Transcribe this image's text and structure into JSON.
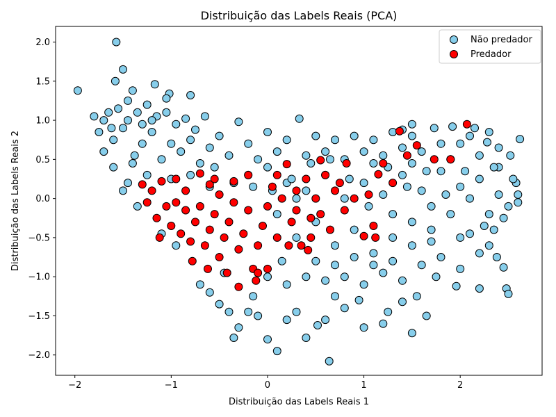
{
  "chart_data": {
    "type": "scatter",
    "title": "Distribuição das Labels Reais (PCA)",
    "xlabel": "Distribuição das Labels Reais  1",
    "ylabel": "Distribuição das Labels Reais  2",
    "xlim": [
      -2.2,
      2.85
    ],
    "ylim": [
      -2.26,
      2.2
    ],
    "xticks": [
      -2,
      -1,
      0,
      1,
      2
    ],
    "xtick_labels": [
      "−2",
      "−1",
      "0",
      "1",
      "2"
    ],
    "yticks": [
      -2.0,
      -1.5,
      -1.0,
      -0.5,
      0.0,
      0.5,
      1.0,
      1.5,
      2.0
    ],
    "ytick_labels": [
      "−2.0",
      "−1.5",
      "−1.0",
      "−0.5",
      "0.0",
      "0.5",
      "1.0",
      "1.5",
      "2.0"
    ],
    "grid": false,
    "legend_position": "top-right",
    "marker_edge_color": "#000000",
    "series": [
      {
        "name": "Não predador",
        "color": "#87ceeb",
        "points": [
          [
            -1.97,
            1.38
          ],
          [
            -1.57,
            2.0
          ],
          [
            -1.5,
            1.65
          ],
          [
            -1.58,
            1.5
          ],
          [
            -1.4,
            1.38
          ],
          [
            -1.17,
            1.46
          ],
          [
            -1.02,
            1.34
          ],
          [
            -1.05,
            1.28
          ],
          [
            -0.8,
            1.32
          ],
          [
            -1.8,
            1.05
          ],
          [
            -1.7,
            1.0
          ],
          [
            -1.62,
            0.9
          ],
          [
            -1.55,
            1.15
          ],
          [
            -1.45,
            1.25
          ],
          [
            -1.35,
            1.1
          ],
          [
            -1.25,
            1.2
          ],
          [
            -1.15,
            1.05
          ],
          [
            -1.05,
            1.1
          ],
          [
            -0.95,
            0.95
          ],
          [
            -0.85,
            1.02
          ],
          [
            -0.75,
            0.88
          ],
          [
            -0.65,
            1.05
          ],
          [
            -1.6,
            0.4
          ],
          [
            -1.45,
            0.2
          ],
          [
            -1.38,
            0.55
          ],
          [
            -1.3,
            0.7
          ],
          [
            -1.2,
            0.85
          ],
          [
            -1.1,
            0.5
          ],
          [
            -1.0,
            0.7
          ],
          [
            -0.9,
            0.6
          ],
          [
            -0.8,
            0.75
          ],
          [
            -0.7,
            0.45
          ],
          [
            -0.6,
            0.65
          ],
          [
            -0.5,
            0.8
          ],
          [
            -0.4,
            0.55
          ],
          [
            -0.3,
            0.98
          ],
          [
            -0.2,
            0.7
          ],
          [
            -0.1,
            0.5
          ],
          [
            0.0,
            0.85
          ],
          [
            0.1,
            0.6
          ],
          [
            0.2,
            0.75
          ],
          [
            0.33,
            1.02
          ],
          [
            0.4,
            0.55
          ],
          [
            0.5,
            0.8
          ],
          [
            0.6,
            0.6
          ],
          [
            0.7,
            0.75
          ],
          [
            0.8,
            0.5
          ],
          [
            0.9,
            0.8
          ],
          [
            1.0,
            0.6
          ],
          [
            1.1,
            0.75
          ],
          [
            1.2,
            0.55
          ],
          [
            1.3,
            0.85
          ],
          [
            1.4,
            0.65
          ],
          [
            1.5,
            0.8
          ],
          [
            1.6,
            0.6
          ],
          [
            1.73,
            0.9
          ],
          [
            1.8,
            0.7
          ],
          [
            1.92,
            0.92
          ],
          [
            2.0,
            0.7
          ],
          [
            2.1,
            0.8
          ],
          [
            2.2,
            0.55
          ],
          [
            2.28,
            0.72
          ],
          [
            2.4,
            0.4
          ],
          [
            2.52,
            0.55
          ],
          [
            2.62,
            0.76
          ],
          [
            2.58,
            0.2
          ],
          [
            2.6,
            -0.05
          ],
          [
            2.5,
            -0.1
          ],
          [
            2.45,
            -0.25
          ],
          [
            2.35,
            -0.4
          ],
          [
            2.3,
            -0.6
          ],
          [
            2.38,
            -0.75
          ],
          [
            2.45,
            -0.88
          ],
          [
            2.48,
            -1.15
          ],
          [
            2.5,
            -1.22
          ],
          [
            2.2,
            -1.15
          ],
          [
            1.96,
            -1.12
          ],
          [
            1.75,
            -1.0
          ],
          [
            1.65,
            -1.5
          ],
          [
            1.5,
            -1.72
          ],
          [
            1.55,
            -1.25
          ],
          [
            1.4,
            -1.32
          ],
          [
            1.25,
            -1.45
          ],
          [
            1.2,
            -1.6
          ],
          [
            1.0,
            -1.65
          ],
          [
            0.95,
            -1.3
          ],
          [
            0.8,
            -1.4
          ],
          [
            0.7,
            -1.25
          ],
          [
            0.6,
            -1.55
          ],
          [
            0.52,
            -1.62
          ],
          [
            0.64,
            -2.08
          ],
          [
            0.4,
            -1.78
          ],
          [
            0.3,
            -1.45
          ],
          [
            0.2,
            -1.55
          ],
          [
            0.1,
            -1.95
          ],
          [
            0.0,
            -1.8
          ],
          [
            -0.1,
            -1.5
          ],
          [
            -0.2,
            -1.45
          ],
          [
            -0.3,
            -1.65
          ],
          [
            -0.35,
            -1.78
          ],
          [
            -0.4,
            -1.45
          ],
          [
            -0.5,
            -1.35
          ],
          [
            -0.6,
            -1.2
          ],
          [
            -0.7,
            -1.1
          ],
          [
            -0.45,
            -0.95
          ],
          [
            0.2,
            -1.1
          ],
          [
            0.4,
            -1.0
          ],
          [
            0.6,
            -1.05
          ],
          [
            0.8,
            -1.0
          ],
          [
            1.0,
            -1.1
          ],
          [
            1.2,
            -0.95
          ],
          [
            1.4,
            -1.05
          ],
          [
            1.6,
            -0.85
          ],
          [
            1.8,
            -0.75
          ],
          [
            2.0,
            -0.9
          ],
          [
            2.2,
            -0.7
          ],
          [
            0.3,
            -0.5
          ],
          [
            0.5,
            -0.3
          ],
          [
            0.7,
            -0.6
          ],
          [
            0.9,
            -0.4
          ],
          [
            1.1,
            -0.7
          ],
          [
            1.3,
            -0.5
          ],
          [
            1.5,
            -0.3
          ],
          [
            1.7,
            -0.55
          ],
          [
            1.9,
            -0.2
          ],
          [
            2.1,
            -0.45
          ],
          [
            0.2,
            0.2
          ],
          [
            0.4,
            0.1
          ],
          [
            0.6,
            0.3
          ],
          [
            0.8,
            0.0
          ],
          [
            1.0,
            0.2
          ],
          [
            1.2,
            0.05
          ],
          [
            1.4,
            0.3
          ],
          [
            1.6,
            0.1
          ],
          [
            1.8,
            0.35
          ],
          [
            2.0,
            0.15
          ],
          [
            2.2,
            0.25
          ],
          [
            2.4,
            0.05
          ],
          [
            0.1,
            -0.2
          ],
          [
            0.3,
            0.0
          ],
          [
            -1.25,
            0.3
          ],
          [
            -1.35,
            -0.1
          ],
          [
            -1.5,
            0.1
          ],
          [
            -1.4,
            0.45
          ],
          [
            -1.0,
            0.25
          ],
          [
            -0.6,
            0.15
          ],
          [
            -0.2,
            0.3
          ],
          [
            0.0,
            0.4
          ],
          [
            -0.8,
            0.3
          ],
          [
            -1.1,
            -0.45
          ],
          [
            -0.95,
            -0.6
          ],
          [
            1.1,
            0.45
          ],
          [
            1.3,
            -0.2
          ],
          [
            1.5,
            0.45
          ],
          [
            1.7,
            -0.1
          ],
          [
            1.9,
            0.5
          ],
          [
            2.1,
            0.0
          ],
          [
            2.3,
            -0.2
          ],
          [
            0.5,
            -0.8
          ],
          [
            0.7,
            -0.85
          ],
          [
            0.9,
            -0.75
          ],
          [
            1.1,
            -0.85
          ],
          [
            1.3,
            -0.8
          ],
          [
            1.5,
            -0.6
          ],
          [
            1.7,
            -0.4
          ],
          [
            2.0,
            -0.5
          ],
          [
            2.25,
            -0.35
          ],
          [
            0.0,
            -1.0
          ],
          [
            0.15,
            -0.8
          ],
          [
            -0.15,
            -1.25
          ],
          [
            0.45,
            0.45
          ],
          [
            0.65,
            0.5
          ],
          [
            0.85,
            0.25
          ],
          [
            1.05,
            -0.1
          ],
          [
            1.25,
            0.4
          ],
          [
            1.45,
            0.15
          ],
          [
            1.65,
            0.35
          ],
          [
            1.85,
            0.05
          ],
          [
            2.05,
            0.35
          ],
          [
            2.35,
            0.4
          ],
          [
            2.55,
            0.25
          ],
          [
            2.6,
            0.05
          ],
          [
            2.4,
            0.65
          ],
          [
            2.3,
            0.85
          ],
          [
            2.15,
            0.9
          ],
          [
            1.5,
            0.95
          ],
          [
            1.4,
            0.88
          ],
          [
            -1.7,
            0.6
          ],
          [
            -1.6,
            0.75
          ],
          [
            -1.5,
            0.9
          ],
          [
            -1.75,
            0.85
          ],
          [
            -1.65,
            1.1
          ],
          [
            -1.45,
            1.0
          ],
          [
            -1.3,
            0.95
          ],
          [
            -1.2,
            1.0
          ],
          [
            -0.55,
            0.4
          ],
          [
            -0.35,
            0.2
          ],
          [
            -0.15,
            0.15
          ],
          [
            0.05,
            0.1
          ],
          [
            0.25,
            0.25
          ]
        ]
      },
      {
        "name": "Predador",
        "color": "#ff0000",
        "points": [
          [
            -1.3,
            0.18
          ],
          [
            -1.2,
            0.1
          ],
          [
            -1.1,
            0.22
          ],
          [
            -1.05,
            -0.1
          ],
          [
            -1.15,
            -0.25
          ],
          [
            -1.0,
            -0.35
          ],
          [
            -0.95,
            -0.05
          ],
          [
            -0.9,
            -0.45
          ],
          [
            -0.85,
            -0.15
          ],
          [
            -0.8,
            -0.55
          ],
          [
            -0.75,
            -0.3
          ],
          [
            -0.7,
            -0.1
          ],
          [
            -0.65,
            -0.6
          ],
          [
            -0.6,
            -0.4
          ],
          [
            -0.55,
            -0.2
          ],
          [
            -0.5,
            -0.75
          ],
          [
            -0.45,
            -0.5
          ],
          [
            -0.4,
            -0.3
          ],
          [
            -0.35,
            -0.05
          ],
          [
            -0.3,
            -0.65
          ],
          [
            -0.25,
            -0.45
          ],
          [
            -0.2,
            -0.15
          ],
          [
            -0.15,
            -0.9
          ],
          [
            -0.1,
            -0.6
          ],
          [
            -0.05,
            -0.35
          ],
          [
            0.0,
            -0.1
          ],
          [
            0.05,
            0.15
          ],
          [
            0.1,
            -0.5
          ],
          [
            0.15,
            0.0
          ],
          [
            0.2,
            0.44
          ],
          [
            0.25,
            -0.3
          ],
          [
            0.3,
            0.1
          ],
          [
            0.35,
            -0.6
          ],
          [
            0.4,
            0.25
          ],
          [
            0.45,
            -0.25
          ],
          [
            0.5,
            0.0
          ],
          [
            0.55,
            0.49
          ],
          [
            0.6,
            0.3
          ],
          [
            0.65,
            -0.4
          ],
          [
            0.7,
            0.1
          ],
          [
            0.75,
            0.2
          ],
          [
            0.8,
            -0.15
          ],
          [
            0.9,
            0.0
          ],
          [
            1.0,
            -0.48
          ],
          [
            1.05,
            0.05
          ],
          [
            1.1,
            -0.35
          ],
          [
            1.15,
            0.31
          ],
          [
            1.2,
            0.45
          ],
          [
            1.3,
            0.2
          ],
          [
            1.37,
            0.86
          ],
          [
            1.45,
            0.55
          ],
          [
            1.55,
            0.68
          ],
          [
            1.73,
            0.5
          ],
          [
            1.9,
            0.5
          ],
          [
            2.07,
            0.95
          ],
          [
            -0.7,
            0.32
          ],
          [
            -0.6,
            0.18
          ],
          [
            -0.5,
            0.05
          ],
          [
            -0.35,
            0.22
          ],
          [
            -0.2,
            0.3
          ],
          [
            -0.1,
            -0.95
          ],
          [
            -0.3,
            -1.13
          ],
          [
            -0.12,
            -1.05
          ],
          [
            0.0,
            -0.9
          ],
          [
            0.22,
            -0.6
          ],
          [
            0.42,
            -0.66
          ],
          [
            0.55,
            -0.2
          ],
          [
            0.3,
            -0.15
          ],
          [
            -0.55,
            0.25
          ],
          [
            -0.85,
            0.1
          ],
          [
            -0.95,
            0.25
          ],
          [
            -1.25,
            -0.05
          ],
          [
            -1.12,
            -0.5
          ],
          [
            -0.78,
            -0.8
          ],
          [
            -0.62,
            -0.9
          ],
          [
            -0.42,
            -0.95
          ],
          [
            0.1,
            0.3
          ],
          [
            0.45,
            -0.5
          ],
          [
            0.82,
            0.45
          ],
          [
            1.12,
            -0.5
          ]
        ]
      }
    ]
  }
}
